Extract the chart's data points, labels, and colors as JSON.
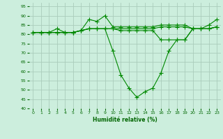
{
  "xlabel": "Humidité relative (%)",
  "background_color": "#cceedd",
  "grid_color": "#aaccbb",
  "line_color": "#008800",
  "xlim": [
    -0.5,
    23.5
  ],
  "ylim": [
    40,
    97
  ],
  "xticks": [
    0,
    1,
    2,
    3,
    4,
    5,
    6,
    7,
    8,
    9,
    10,
    11,
    12,
    13,
    14,
    15,
    16,
    17,
    18,
    19,
    20,
    21,
    22,
    23
  ],
  "yticks": [
    40,
    45,
    50,
    55,
    60,
    65,
    70,
    75,
    80,
    85,
    90,
    95
  ],
  "line1_x": [
    0,
    1,
    2,
    3,
    4,
    5,
    6,
    7,
    8,
    9,
    10,
    11,
    12,
    13,
    14,
    15,
    16,
    17,
    18,
    19,
    20,
    21,
    22,
    23
  ],
  "line1_y": [
    81,
    81,
    81,
    83,
    81,
    81,
    82,
    88,
    87,
    90,
    84,
    84,
    84,
    84,
    84,
    84,
    85,
    85,
    85,
    85,
    83,
    83,
    85,
    88
  ],
  "line2_x": [
    0,
    1,
    2,
    3,
    4,
    5,
    6,
    7,
    8,
    9,
    10,
    11,
    12,
    13,
    14,
    15,
    16,
    17,
    18,
    19,
    20,
    21,
    22,
    23
  ],
  "line2_y": [
    81,
    81,
    81,
    81,
    81,
    81,
    82,
    83,
    83,
    83,
    83,
    83,
    83,
    83,
    83,
    83,
    84,
    84,
    84,
    84,
    83,
    83,
    83,
    84
  ],
  "line3_x": [
    0,
    1,
    2,
    3,
    4,
    5,
    6,
    7,
    8,
    9,
    10,
    11,
    12,
    13,
    14,
    15,
    16,
    17,
    18,
    19,
    20,
    21,
    22,
    23
  ],
  "line3_y": [
    81,
    81,
    81,
    81,
    81,
    81,
    82,
    83,
    83,
    83,
    83,
    82,
    82,
    82,
    82,
    82,
    77,
    77,
    77,
    77,
    83,
    83,
    83,
    84
  ],
  "line4_x": [
    0,
    1,
    2,
    3,
    4,
    5,
    6,
    7,
    8,
    9,
    10,
    11,
    12,
    13,
    14,
    15,
    16,
    17,
    18,
    19,
    20,
    21,
    22,
    23
  ],
  "line4_y": [
    81,
    81,
    81,
    81,
    81,
    81,
    82,
    83,
    83,
    83,
    71,
    58,
    51,
    46,
    49,
    51,
    59,
    71,
    77,
    77,
    83,
    83,
    83,
    84
  ]
}
